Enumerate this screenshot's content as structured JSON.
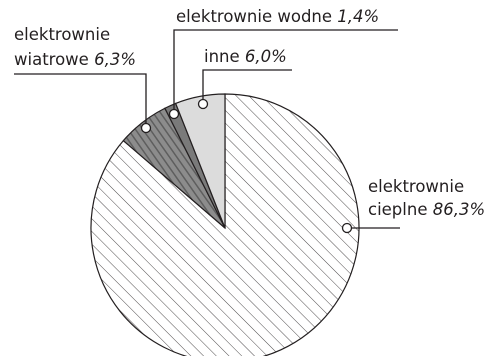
{
  "chart_data": {
    "type": "pie",
    "title": "",
    "slices": [
      {
        "label_lines": [
          "elektrownie",
          "cieplne"
        ],
        "percent_text": "86,3%",
        "value": 86.3
      },
      {
        "label_lines": [
          "elektrownie",
          "wiatrowe"
        ],
        "percent_text": "6,3%",
        "value": 6.3
      },
      {
        "label_lines": [
          "elektrownie wodne"
        ],
        "percent_text": "1,4%",
        "value": 1.4
      },
      {
        "label_lines": [
          "inne"
        ],
        "percent_text": "6,0%",
        "value": 6.0
      }
    ],
    "legend": "none",
    "direction": "clockwise",
    "start_angle": "12 o'clock"
  }
}
